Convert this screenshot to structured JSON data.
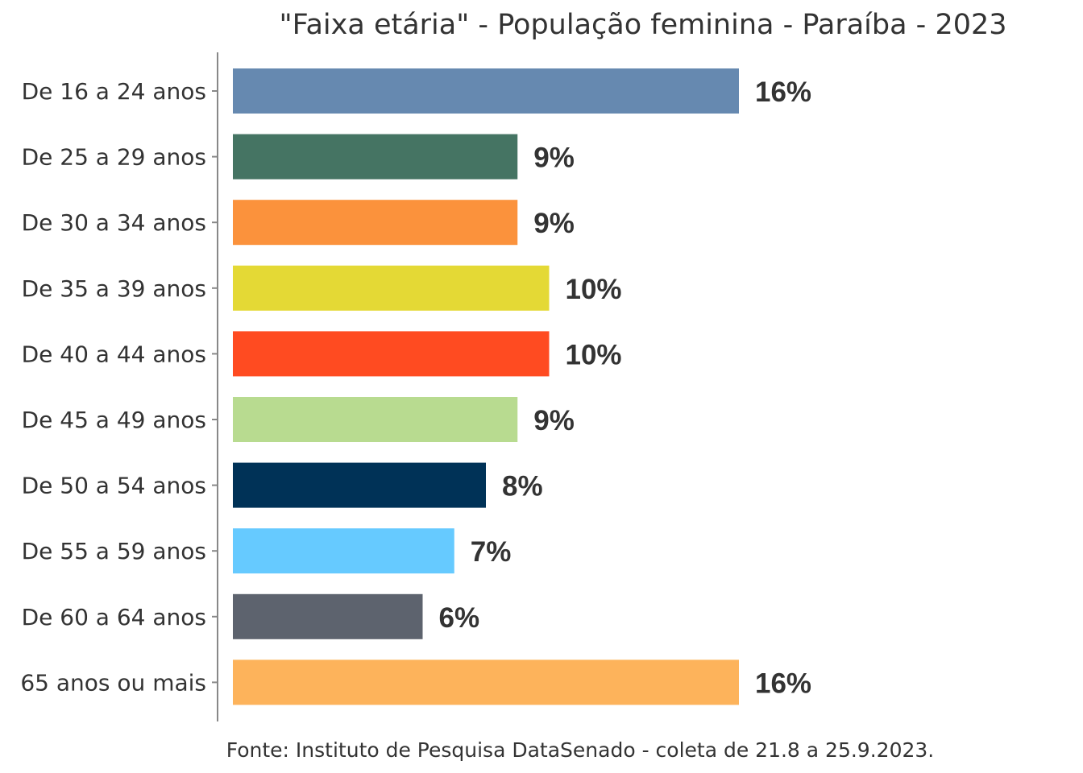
{
  "chart_data": {
    "type": "bar",
    "orientation": "horizontal",
    "title": "\"Faixa etária\" - População feminina - Paraíba - 2023",
    "caption": "Fonte: Instituto de Pesquisa DataSenado - coleta de 21.8 a 25.9.2023.",
    "categories": [
      "De 16 a 24 anos",
      "De 25 a 29 anos",
      "De 30 a 34 anos",
      "De 35 a 39 anos",
      "De 40 a 44 anos",
      "De 45 a 49 anos",
      "De 50 a 54 anos",
      "De 55 a 59 anos",
      "De 60 a 64 anos",
      "65 anos ou mais"
    ],
    "values": [
      16,
      9,
      9,
      10,
      10,
      9,
      8,
      7,
      6,
      16
    ],
    "value_labels": [
      "16%",
      "9%",
      "9%",
      "10%",
      "10%",
      "9%",
      "8%",
      "7%",
      "6%",
      "16%"
    ],
    "colors": [
      "#6689B0",
      "#457463",
      "#FB923C",
      "#E4D935",
      "#FF4B21",
      "#B8DB90",
      "#003257",
      "#66CAFF",
      "#5D636E",
      "#FDB35B"
    ],
    "xlim": [
      0,
      16
    ],
    "grid": false,
    "legend": "none"
  }
}
